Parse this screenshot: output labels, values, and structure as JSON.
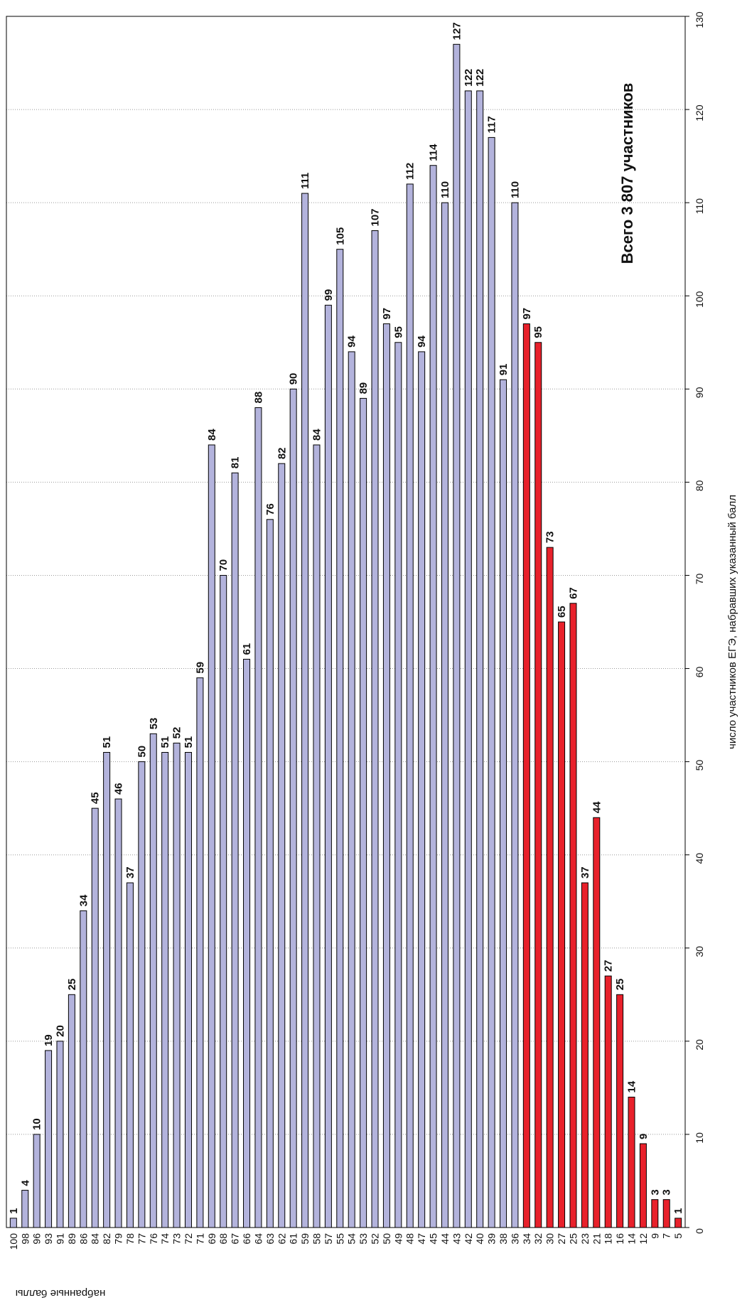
{
  "chart_data": {
    "type": "bar",
    "annotation": "Всего 3 807 участников",
    "x_label": "набранные баллы",
    "y_label": "число участников ЕГЭ, набравших указанный балл",
    "categories": [
      "100",
      "98",
      "96",
      "93",
      "91",
      "89",
      "86",
      "84",
      "82",
      "79",
      "78",
      "77",
      "76",
      "74",
      "73",
      "72",
      "71",
      "69",
      "68",
      "67",
      "66",
      "64",
      "63",
      "62",
      "61",
      "59",
      "58",
      "57",
      "55",
      "54",
      "53",
      "52",
      "50",
      "49",
      "48",
      "47",
      "45",
      "44",
      "43",
      "42",
      "40",
      "39",
      "38",
      "36",
      "34",
      "32",
      "30",
      "27",
      "25",
      "23",
      "21",
      "18",
      "16",
      "14",
      "12",
      "9",
      "7",
      "5"
    ],
    "values": [
      1,
      4,
      10,
      19,
      20,
      25,
      34,
      45,
      51,
      46,
      37,
      50,
      53,
      51,
      52,
      51,
      59,
      84,
      70,
      81,
      61,
      88,
      76,
      82,
      90,
      111,
      84,
      99,
      105,
      94,
      89,
      107,
      97,
      95,
      112,
      94,
      114,
      110,
      127,
      122,
      122,
      117,
      91,
      110,
      97,
      95,
      73,
      65,
      67,
      37,
      44,
      27,
      25,
      14,
      9,
      3,
      3,
      1
    ],
    "bar_colors": [
      "#b3b3dc",
      "#b3b3dc",
      "#b3b3dc",
      "#b3b3dc",
      "#b3b3dc",
      "#b3b3dc",
      "#b3b3dc",
      "#b3b3dc",
      "#b3b3dc",
      "#b3b3dc",
      "#b3b3dc",
      "#b3b3dc",
      "#b3b3dc",
      "#b3b3dc",
      "#b3b3dc",
      "#b3b3dc",
      "#b3b3dc",
      "#b3b3dc",
      "#b3b3dc",
      "#b3b3dc",
      "#b3b3dc",
      "#b3b3dc",
      "#b3b3dc",
      "#b3b3dc",
      "#b3b3dc",
      "#b3b3dc",
      "#b3b3dc",
      "#b3b3dc",
      "#b3b3dc",
      "#b3b3dc",
      "#b3b3dc",
      "#b3b3dc",
      "#b3b3dc",
      "#b3b3dc",
      "#b3b3dc",
      "#b3b3dc",
      "#b3b3dc",
      "#b3b3dc",
      "#b3b3dc",
      "#b3b3dc",
      "#b3b3dc",
      "#b3b3dc",
      "#b3b3dc",
      "#b3b3dc",
      "#e8212b",
      "#e8212b",
      "#e8212b",
      "#e8212b",
      "#e8212b",
      "#e8212b",
      "#e8212b",
      "#e8212b",
      "#e8212b",
      "#e8212b",
      "#e8212b",
      "#e8212b",
      "#e8212b",
      "#e8212b"
    ],
    "ylim": [
      0,
      130
    ],
    "yticks": [
      0,
      10,
      20,
      30,
      40,
      50,
      60,
      70,
      80,
      90,
      100,
      110,
      120,
      130
    ],
    "grid": true
  }
}
